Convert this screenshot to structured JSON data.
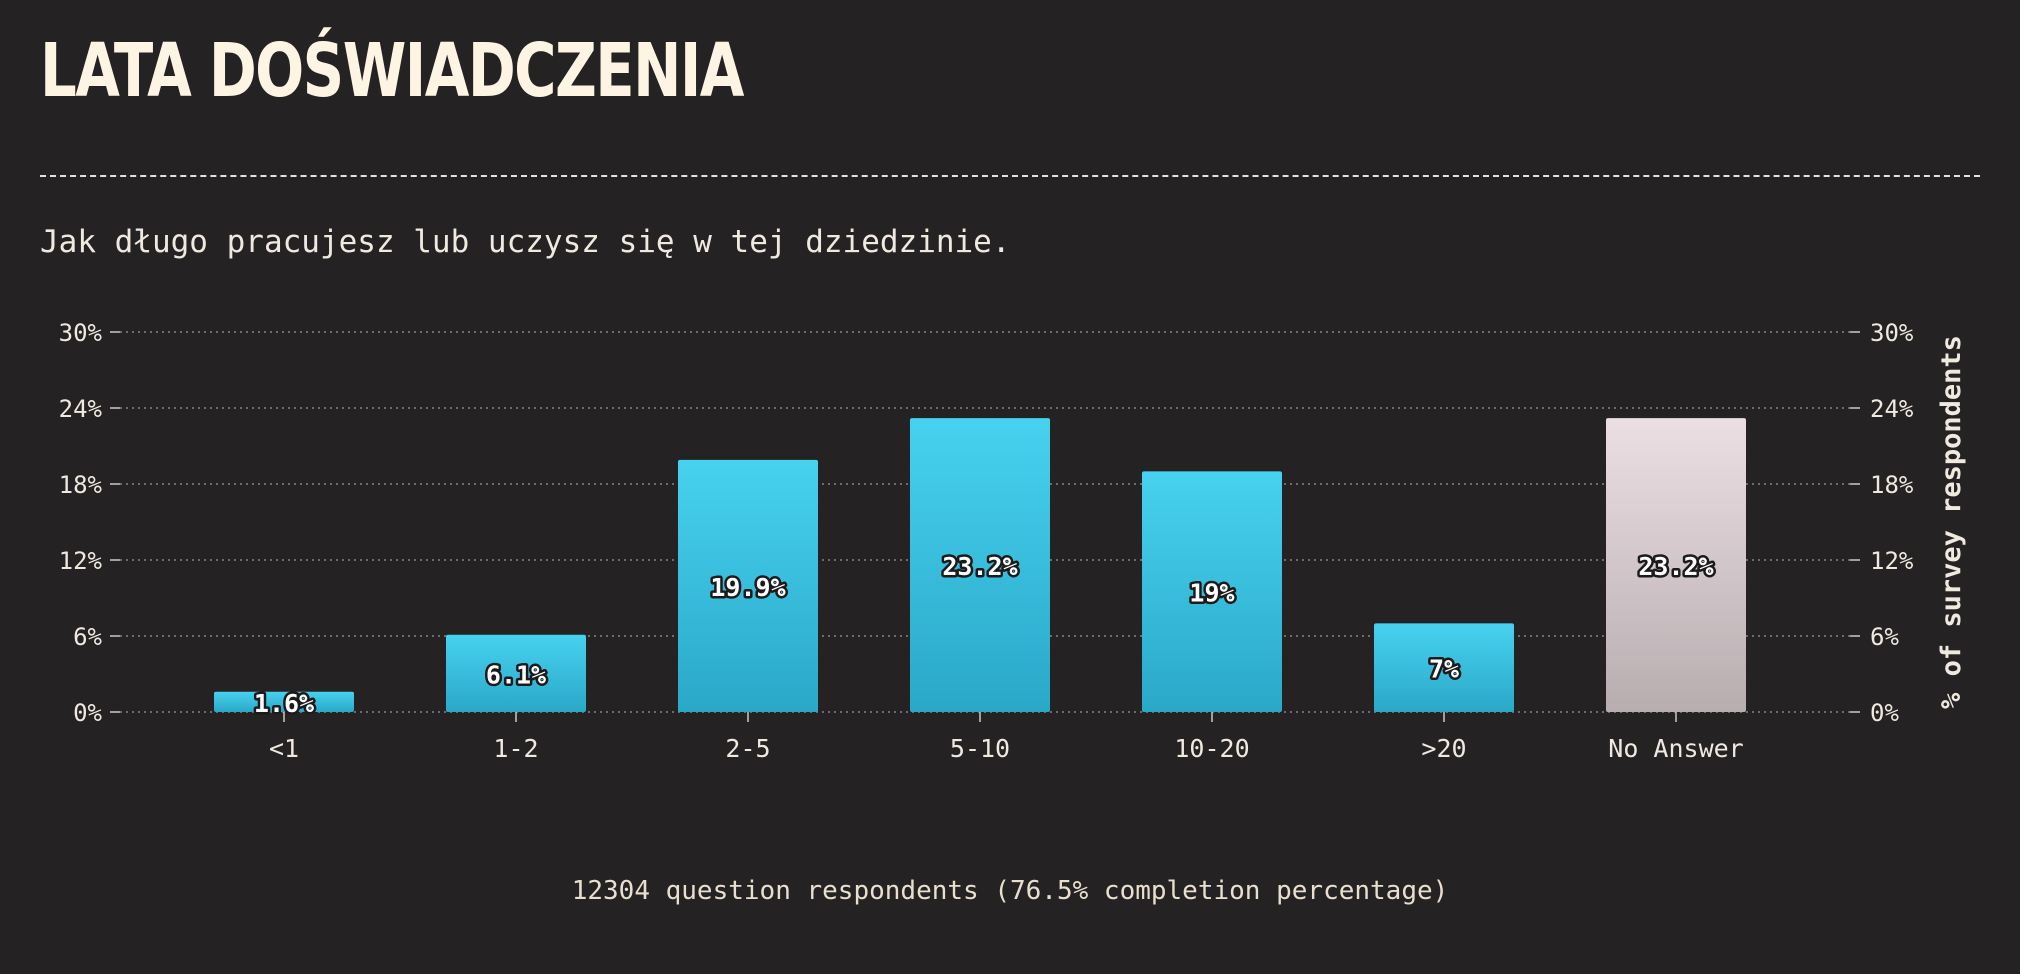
{
  "title": "LATA DOŚWIADCZENIA",
  "subtitle": "Jak długo pracujesz lub uczysz się w tej dziedzinie.",
  "footer": "12304 question respondents (76.5% completion percentage)",
  "colors": {
    "background": "#252223",
    "bar_top": "#47d2ef",
    "bar_bottom": "#2aa8c8",
    "no_answer_top": "#ecdfe4",
    "no_answer_bottom": "#b7adaf",
    "grid": "#8a8587",
    "text": "#efe9e0"
  },
  "chart_data": {
    "type": "bar",
    "categories": [
      "<1",
      "1-2",
      "2-5",
      "5-10",
      "10-20",
      ">20",
      "No Answer"
    ],
    "values": [
      1.6,
      6.1,
      19.9,
      23.2,
      19,
      7,
      23.2
    ],
    "value_labels": [
      "1.6%",
      "6.1%",
      "19.9%",
      "23.2%",
      "19%",
      "7%",
      "23.2%"
    ],
    "ylim": [
      0,
      30
    ],
    "yticks": [
      "0%",
      "6%",
      "12%",
      "18%",
      "24%",
      "30%"
    ],
    "ylabel": "% of survey respondents",
    "grid": true
  }
}
